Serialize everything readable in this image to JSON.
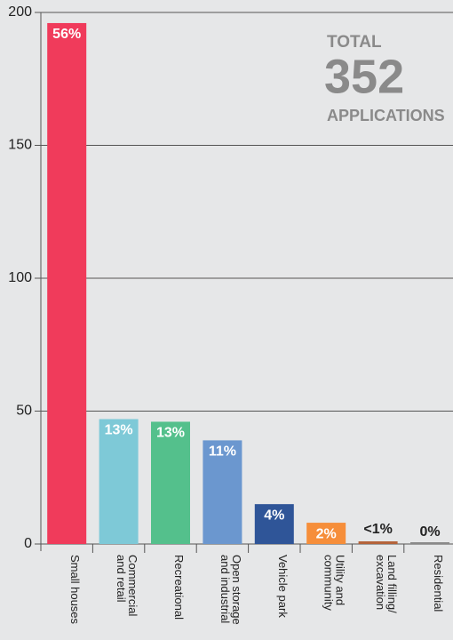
{
  "chart_data": {
    "type": "bar",
    "categories": [
      "Small houses",
      "Commercial\nand retail",
      "Recreational",
      "Open storage\nand industrial",
      "Vehicle park",
      "Utility and\ncommunity",
      "Land filling/\nexcavation",
      "Residential"
    ],
    "values": [
      196,
      47,
      46,
      39,
      15,
      8,
      1,
      0
    ],
    "value_labels": [
      "56%",
      "13%",
      "13%",
      "11%",
      "4%",
      "2%",
      "<1%",
      "0%"
    ],
    "colors": [
      "#f03b5b",
      "#7ec9d7",
      "#54c08c",
      "#6b97cf",
      "#2f5598",
      "#f68e3a",
      "#b4633a",
      "#8a8a8a"
    ],
    "ylim": [
      0,
      200
    ],
    "yticks": [
      0,
      50,
      100,
      150,
      200
    ],
    "grid": true,
    "annotation": {
      "top": "TOTAL",
      "number": "352",
      "bottom": "APPLICATIONS"
    }
  }
}
